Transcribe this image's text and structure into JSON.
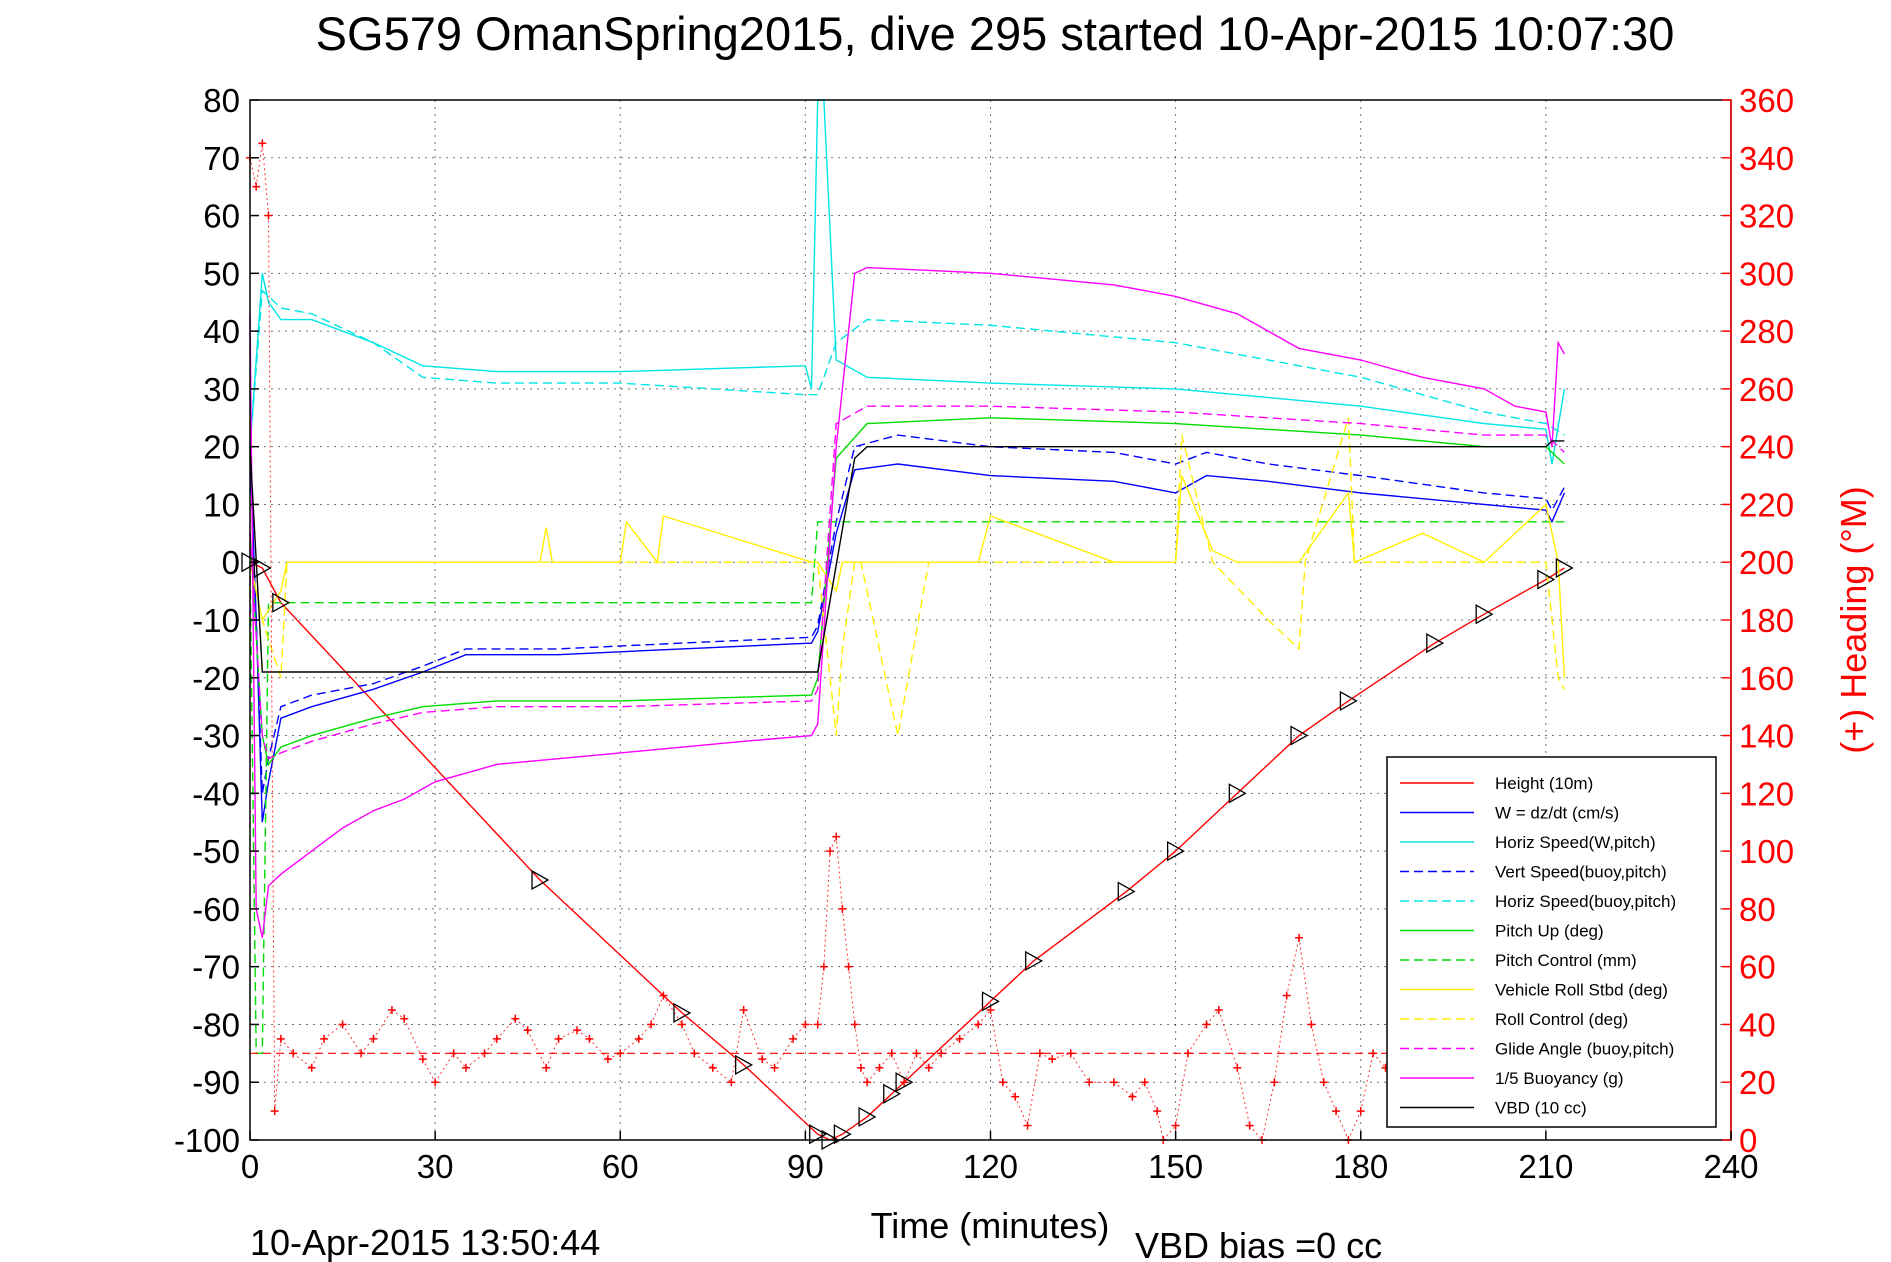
{
  "chart_data": {
    "type": "line",
    "title": "SG579 OmanSpring2015, dive 295 started 10-Apr-2015 10:07:30",
    "xlabel": "Time (minutes)",
    "ylabel_right": "(+) Heading (°M)",
    "footer_left": "10-Apr-2015 13:50:44",
    "footer_right": "VBD bias =0 cc",
    "xlim": [
      0,
      240
    ],
    "ylim": [
      -100,
      80
    ],
    "ylim_right": [
      0,
      360
    ],
    "xticks": [
      "0",
      "30",
      "60",
      "90",
      "120",
      "150",
      "180",
      "210",
      "240"
    ],
    "yticks": [
      "80",
      "70",
      "60",
      "50",
      "40",
      "30",
      "20",
      "10",
      "0",
      "-10",
      "-20",
      "-30",
      "-40",
      "-50",
      "-60",
      "-70",
      "-80",
      "-90",
      "-100"
    ],
    "yticks_right": [
      "360",
      "340",
      "320",
      "300",
      "280",
      "260",
      "240",
      "220",
      "200",
      "180",
      "160",
      "140",
      "120",
      "100",
      "80",
      "60",
      "40",
      "20",
      "0"
    ],
    "grid": true,
    "legend_position": "lower-right",
    "series": [
      {
        "name": "Height (10m)",
        "color": "#ff0000",
        "dash": "solid",
        "x": [
          0,
          2,
          5,
          47,
          70,
          80,
          92,
          94,
          96,
          100,
          104,
          106,
          120,
          127,
          142,
          150,
          160,
          170,
          178,
          192,
          200,
          210,
          213
        ],
        "y": [
          0,
          -1,
          -7,
          -55,
          -78,
          -87,
          -99,
          -100,
          -99,
          -96,
          -92,
          -90,
          -76,
          -69,
          -57,
          -50,
          -40,
          -30,
          -24,
          -14,
          -9,
          -3,
          -1
        ]
      },
      {
        "name": "W = dz/dt (cm/s)",
        "color": "#0000ff",
        "dash": "solid",
        "x": [
          0,
          1,
          2,
          3,
          5,
          10,
          20,
          28,
          35,
          50,
          70,
          91,
          92,
          95,
          98,
          105,
          120,
          140,
          150,
          155,
          165,
          180,
          200,
          210,
          211,
          213
        ],
        "y": [
          20,
          -10,
          -45,
          -38,
          -27,
          -25,
          -22,
          -19,
          -16,
          -16,
          -15,
          -14,
          -12,
          5,
          16,
          17,
          15,
          14,
          12,
          15,
          14,
          12,
          10,
          9,
          7,
          12
        ]
      },
      {
        "name": "Horiz Speed(W,pitch)",
        "color": "#00e5e5",
        "dash": "solid",
        "x": [
          0,
          1,
          2,
          3,
          5,
          10,
          20,
          28,
          40,
          60,
          90,
          91,
          92,
          93,
          95,
          100,
          120,
          150,
          180,
          200,
          210,
          211,
          213
        ],
        "y": [
          20,
          35,
          50,
          45,
          42,
          42,
          38,
          34,
          33,
          33,
          34,
          30,
          80,
          80,
          35,
          32,
          31,
          30,
          27,
          24,
          23,
          17,
          30
        ]
      },
      {
        "name": "Vert Speed(buoy,pitch)",
        "color": "#0000ff",
        "dash": "dashed",
        "x": [
          0,
          1,
          2,
          3,
          5,
          10,
          20,
          28,
          35,
          50,
          70,
          91,
          92,
          95,
          98,
          105,
          120,
          140,
          150,
          155,
          165,
          180,
          200,
          210,
          211,
          213
        ],
        "y": [
          18,
          -10,
          -40,
          -34,
          -25,
          -23,
          -21,
          -18,
          -15,
          -15,
          -14,
          -13,
          -11,
          7,
          20,
          22,
          20,
          19,
          17,
          19,
          17,
          15,
          12,
          11,
          9,
          13
        ]
      },
      {
        "name": "Horiz Speed(buoy,pitch)",
        "color": "#00e5e5",
        "dash": "dashed",
        "x": [
          0,
          2,
          5,
          10,
          20,
          28,
          40,
          60,
          90,
          92,
          95,
          100,
          120,
          150,
          180,
          200,
          210,
          213
        ],
        "y": [
          20,
          47,
          44,
          43,
          38,
          32,
          31,
          31,
          29,
          29,
          38,
          42,
          41,
          38,
          32,
          26,
          24,
          22
        ]
      },
      {
        "name": "Pitch Up (deg)",
        "color": "#00dd00",
        "dash": "solid",
        "x": [
          0,
          2,
          3,
          5,
          10,
          20,
          28,
          40,
          60,
          91,
          92,
          95,
          100,
          120,
          150,
          180,
          200,
          210,
          213
        ],
        "y": [
          5,
          -30,
          -35,
          -32,
          -30,
          -27,
          -25,
          -24,
          -24,
          -23,
          -20,
          18,
          24,
          25,
          24,
          22,
          20,
          20,
          17
        ]
      },
      {
        "name": "Pitch Control (mm)",
        "color": "#00dd00",
        "dash": "dashed",
        "x": [
          0,
          1,
          2,
          3,
          91,
          92,
          212,
          213
        ],
        "y": [
          0,
          -85,
          -85,
          -7,
          -7,
          7,
          7,
          7
        ]
      },
      {
        "name": "Vehicle Roll Stbd (deg)",
        "color": "#ffee00",
        "dash": "solid",
        "x": [
          0,
          2,
          5,
          6,
          30,
          47,
          48,
          49,
          60,
          61,
          66,
          67,
          91,
          92,
          95,
          96,
          105,
          110,
          118,
          120,
          140,
          150,
          151,
          156,
          160,
          170,
          178,
          179,
          190,
          200,
          210,
          212,
          213
        ],
        "y": [
          0,
          -10,
          -5,
          0,
          0,
          0,
          6,
          0,
          0,
          7,
          0,
          8,
          0,
          0,
          -5,
          0,
          0,
          0,
          0,
          8,
          0,
          0,
          15,
          2,
          0,
          0,
          12,
          0,
          5,
          0,
          10,
          0,
          -20
        ]
      },
      {
        "name": "Roll Control (deg)",
        "color": "#ffee00",
        "dash": "dashed",
        "x": [
          0,
          2,
          5,
          6,
          91,
          92,
          95,
          96,
          98,
          99,
          105,
          110,
          120,
          140,
          150,
          151,
          156,
          165,
          170,
          171,
          178,
          179,
          190,
          200,
          210,
          212,
          213
        ],
        "y": [
          0,
          -10,
          -20,
          0,
          0,
          0,
          -30,
          -15,
          0,
          0,
          -30,
          0,
          0,
          0,
          0,
          22,
          0,
          -10,
          -15,
          0,
          25,
          0,
          0,
          0,
          0,
          -20,
          -22
        ]
      },
      {
        "name": "Glide Angle (buoy,pitch)",
        "color": "#ff00ff",
        "dash": "dashed",
        "x": [
          0,
          2,
          3,
          5,
          10,
          20,
          28,
          40,
          60,
          91,
          92,
          95,
          100,
          120,
          150,
          180,
          200,
          210,
          213
        ],
        "y": [
          5,
          -30,
          -34,
          -33,
          -31,
          -28,
          -26,
          -25,
          -25,
          -24,
          -22,
          24,
          27,
          27,
          26,
          24,
          22,
          22,
          19
        ]
      },
      {
        "name": "1/5 Buoyancy (g)",
        "color": "#ff00ff",
        "dash": "solid",
        "x": [
          0,
          1,
          2,
          3,
          5,
          10,
          15,
          20,
          25,
          30,
          40,
          60,
          80,
          91,
          92,
          95,
          98,
          100,
          120,
          140,
          150,
          160,
          170,
          180,
          190,
          200,
          205,
          210,
          211,
          212,
          213
        ],
        "y": [
          43,
          -60,
          -65,
          -56,
          -54,
          -50,
          -46,
          -43,
          -41,
          -38,
          -35,
          -33,
          -31,
          -30,
          -28,
          20,
          50,
          51,
          50,
          48,
          46,
          43,
          37,
          35,
          32,
          30,
          27,
          26,
          20,
          38,
          36
        ]
      },
      {
        "name": "VBD (10 cc)",
        "color": "#000000",
        "dash": "solid",
        "x": [
          0,
          2,
          3,
          91,
          92,
          98,
          100,
          210,
          211,
          213
        ],
        "y": [
          20,
          -19,
          -19,
          -19,
          -19,
          18,
          20,
          20,
          21,
          21
        ]
      }
    ],
    "heading_series": {
      "name": "(+) Heading",
      "color": "#ff0000",
      "mean_line": 30,
      "x": [
        0,
        1,
        2,
        3,
        4,
        5,
        7,
        10,
        12,
        15,
        18,
        20,
        23,
        25,
        28,
        30,
        33,
        35,
        38,
        40,
        43,
        45,
        48,
        50,
        53,
        55,
        58,
        60,
        63,
        65,
        67,
        70,
        72,
        75,
        78,
        80,
        83,
        85,
        88,
        90,
        92,
        93,
        94,
        95,
        96,
        97,
        98,
        99,
        100,
        102,
        104,
        106,
        108,
        110,
        112,
        115,
        118,
        120,
        122,
        124,
        126,
        128,
        130,
        133,
        136,
        140,
        143,
        145,
        147,
        148,
        150,
        152,
        155,
        157,
        160,
        162,
        164,
        166,
        168,
        170,
        172,
        174,
        176,
        178,
        180,
        182,
        184,
        186,
        190,
        195,
        200,
        205,
        210,
        212
      ],
      "y": [
        340,
        330,
        345,
        320,
        10,
        35,
        30,
        25,
        35,
        40,
        30,
        35,
        45,
        42,
        28,
        20,
        30,
        25,
        30,
        35,
        42,
        38,
        25,
        35,
        38,
        35,
        28,
        30,
        35,
        40,
        50,
        40,
        30,
        25,
        20,
        45,
        28,
        25,
        35,
        40,
        40,
        60,
        100,
        105,
        80,
        60,
        40,
        25,
        20,
        25,
        30,
        20,
        30,
        25,
        30,
        35,
        40,
        45,
        20,
        15,
        5,
        30,
        28,
        30,
        20,
        20,
        15,
        20,
        10,
        0,
        5,
        30,
        40,
        45,
        25,
        5,
        0,
        20,
        50,
        70,
        40,
        20,
        10,
        0,
        10,
        30,
        25,
        30,
        28,
        25,
        22,
        24,
        25,
        25
      ]
    }
  }
}
